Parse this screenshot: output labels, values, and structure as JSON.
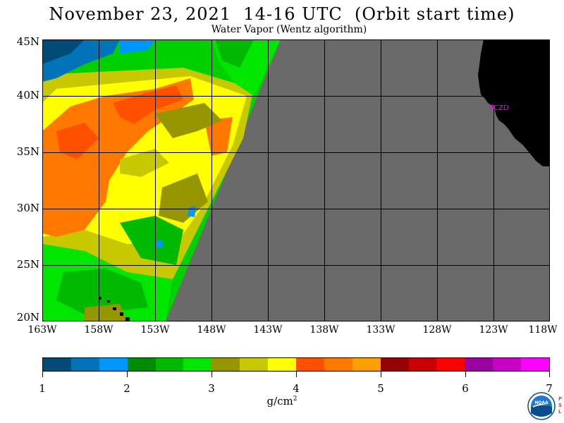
{
  "title": "November 23, 2021  14-16 UTC  (Orbit start time)",
  "subtitle": "Water Vapor (Wentz algorithm)",
  "map": {
    "lat_labels": [
      "45N",
      "40N",
      "35N",
      "30N",
      "25N",
      "20N"
    ],
    "lon_labels": [
      "163W",
      "158W",
      "153W",
      "148W",
      "143W",
      "138W",
      "133W",
      "128W",
      "123W",
      "118W"
    ],
    "place_label": "CZD",
    "colors": {
      "no_data": "#6a6a6a",
      "land": "#000000",
      "grid": "#000000",
      "place_marker": "#ff00ff"
    }
  },
  "colorbar": {
    "tick_labels": [
      "1",
      "2",
      "3",
      "4",
      "5",
      "6",
      "7"
    ],
    "unit": "g/cm",
    "unit_power": "2",
    "colors": [
      "#004b78",
      "#0073b9",
      "#0096ff",
      "#008c00",
      "#00b900",
      "#00e600",
      "#969600",
      "#c8c800",
      "#ffff00",
      "#ff5000",
      "#ff7800",
      "#ffa000",
      "#960000",
      "#c80000",
      "#ff0000",
      "#9b00a0",
      "#c800c8",
      "#ff00ff"
    ]
  },
  "logo": {
    "text": "NOAA",
    "psl": [
      "P",
      "S",
      "L"
    ]
  }
}
